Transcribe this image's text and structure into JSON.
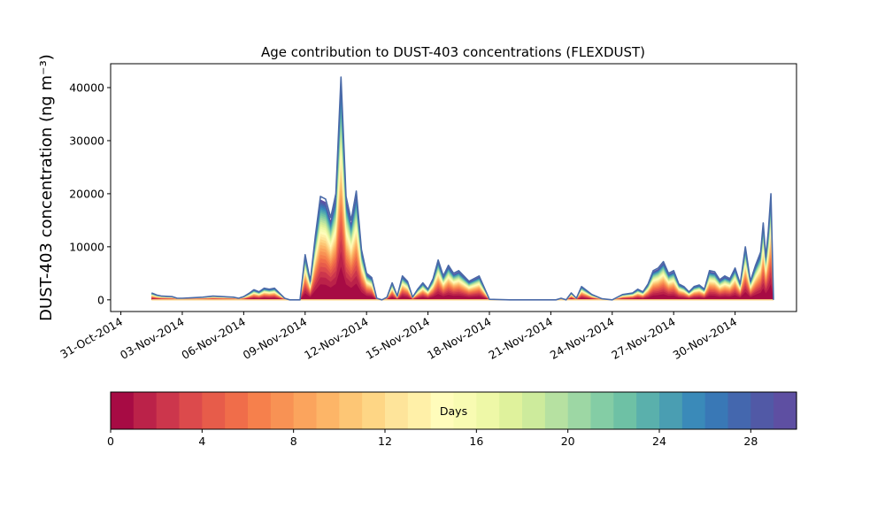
{
  "chart_data": {
    "type": "area",
    "title": "Age contribution to DUST-403 concentrations (FLEXDUST)",
    "xlabel": "",
    "ylabel": "DUST-403 concentration (ng m⁻³)",
    "xlim": [
      "2014-10-30T12:00",
      "2014-12-03T00:00"
    ],
    "ylim": [
      -2200,
      44500
    ],
    "x_tick_labels": [
      "31-Oct-2014",
      "03-Nov-2014",
      "06-Nov-2014",
      "09-Nov-2014",
      "12-Nov-2014",
      "15-Nov-2014",
      "18-Nov-2014",
      "21-Nov-2014",
      "24-Nov-2014",
      "27-Nov-2014",
      "30-Nov-2014"
    ],
    "y_ticks": [
      0,
      10000,
      20000,
      30000,
      40000
    ],
    "grid": false,
    "stacking": "cumulative by age (0-30 days)",
    "total_series_color": "#4a6aa8",
    "total_series": {
      "name": "",
      "x": [
        "2014-11-01T12:00",
        "2014-11-01T18:00",
        "2014-11-02T00:00",
        "2014-11-02T12:00",
        "2014-11-02T18:00",
        "2014-11-03T00:00",
        "2014-11-03T12:00",
        "2014-11-04T00:00",
        "2014-11-04T12:00",
        "2014-11-05T00:00",
        "2014-11-05T12:00",
        "2014-11-05T18:00",
        "2014-11-06T00:00",
        "2014-11-06T06:00",
        "2014-11-06T12:00",
        "2014-11-06T18:00",
        "2014-11-07T00:00",
        "2014-11-07T06:00",
        "2014-11-07T12:00",
        "2014-11-08T00:00",
        "2014-11-08T06:00",
        "2014-11-08T12:00",
        "2014-11-08T18:00",
        "2014-11-09T00:00",
        "2014-11-09T06:00",
        "2014-11-09T12:00",
        "2014-11-09T18:00",
        "2014-11-10T00:00",
        "2014-11-10T06:00",
        "2014-11-10T12:00",
        "2014-11-10T18:00",
        "2014-11-11T00:00",
        "2014-11-11T06:00",
        "2014-11-11T12:00",
        "2014-11-11T18:00",
        "2014-11-12T00:00",
        "2014-11-12T06:00",
        "2014-11-12T12:00",
        "2014-11-12T18:00",
        "2014-11-13T00:00",
        "2014-11-13T06:00",
        "2014-11-13T12:00",
        "2014-11-13T18:00",
        "2014-11-14T00:00",
        "2014-11-14T06:00",
        "2014-11-14T12:00",
        "2014-11-14T18:00",
        "2014-11-15T00:00",
        "2014-11-15T06:00",
        "2014-11-15T12:00",
        "2014-11-15T18:00",
        "2014-11-16T00:00",
        "2014-11-16T06:00",
        "2014-11-16T12:00",
        "2014-11-17T00:00",
        "2014-11-17T12:00",
        "2014-11-18T00:00",
        "2014-11-19T00:00",
        "2014-11-20T00:00",
        "2014-11-21T00:00",
        "2014-11-21T06:00",
        "2014-11-21T12:00",
        "2014-11-21T18:00",
        "2014-11-22T00:00",
        "2014-11-22T06:00",
        "2014-11-22T12:00",
        "2014-11-23T00:00",
        "2014-11-23T12:00",
        "2014-11-24T00:00",
        "2014-11-24T12:00",
        "2014-11-25T00:00",
        "2014-11-25T06:00",
        "2014-11-25T12:00",
        "2014-11-25T18:00",
        "2014-11-26T00:00",
        "2014-11-26T06:00",
        "2014-11-26T12:00",
        "2014-11-26T18:00",
        "2014-11-27T00:00",
        "2014-11-27T06:00",
        "2014-11-27T12:00",
        "2014-11-27T18:00",
        "2014-11-28T00:00",
        "2014-11-28T06:00",
        "2014-11-28T12:00",
        "2014-11-28T18:00",
        "2014-11-29T00:00",
        "2014-11-29T06:00",
        "2014-11-29T12:00",
        "2014-11-29T18:00",
        "2014-11-30T00:00",
        "2014-11-30T06:00",
        "2014-11-30T12:00",
        "2014-11-30T18:00",
        "2014-12-01T00:00",
        "2014-12-01T06:00",
        "2014-12-01T09:00",
        "2014-12-01T12:00",
        "2014-12-01T15:00",
        "2014-12-01T18:00",
        "2014-12-01T21:00"
      ],
      "values": [
        1300,
        900,
        700,
        600,
        300,
        300,
        400,
        500,
        700,
        600,
        500,
        300,
        600,
        1200,
        1900,
        1500,
        2200,
        2000,
        2200,
        300,
        0,
        0,
        0,
        8500,
        3500,
        12000,
        19500,
        19000,
        15500,
        20000,
        42000,
        19500,
        15000,
        20500,
        9500,
        5000,
        4200,
        300,
        0,
        500,
        3200,
        700,
        4500,
        3500,
        500,
        2000,
        3200,
        2000,
        4000,
        7500,
        4500,
        6500,
        5000,
        5500,
        3500,
        4500,
        100,
        0,
        0,
        0,
        0,
        300,
        0,
        1300,
        300,
        2500,
        1000,
        200,
        0,
        1000,
        1300,
        2000,
        1500,
        3000,
        5500,
        6000,
        7200,
        5000,
        5500,
        3000,
        2500,
        1500,
        2500,
        2800,
        2000,
        5500,
        5300,
        3800,
        4500,
        4000,
        6000,
        3000,
        10000,
        3500,
        6500,
        9000,
        14500,
        8000,
        13000,
        20000,
        0
      ]
    },
    "colorbar": {
      "label": "Days",
      "range": [
        0,
        30
      ],
      "n_levels": 30,
      "ticks": [
        0,
        4,
        8,
        12,
        16,
        20,
        24,
        28
      ],
      "colormap": "Spectral",
      "colors": [
        "#a70b44",
        "#bb2249",
        "#cc364c",
        "#dc4a4c",
        "#e75c4a",
        "#f06d4a",
        "#f6804c",
        "#f89254",
        "#fba45d",
        "#fdb567",
        "#fdc675",
        "#fed685",
        "#fee49a",
        "#fff0a8",
        "#fffcbb",
        "#f8fbb2",
        "#eef8a7",
        "#dff29c",
        "#cdeb9c",
        "#b6e1a1",
        "#9dd7a4",
        "#84cda5",
        "#6ec1a5",
        "#5ab0ac",
        "#4a9eb2",
        "#3a8ab9",
        "#3978b6",
        "#4467ae",
        "#5159a6",
        "#5e4fa2"
      ]
    }
  }
}
